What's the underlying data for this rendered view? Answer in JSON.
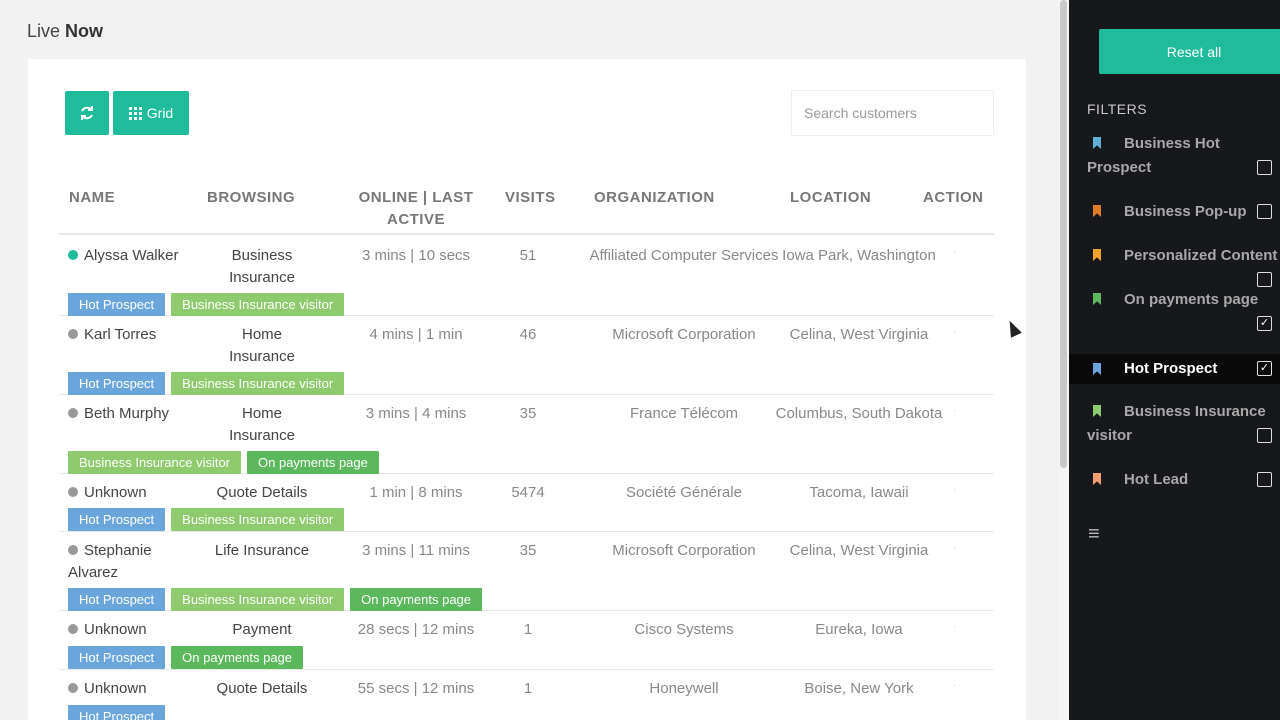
{
  "page": {
    "title_light": "Live",
    "title_bold": "Now"
  },
  "toolbar": {
    "refresh_icon": "refresh-icon",
    "grid_label": "Grid",
    "grid_icon": "grid-icon"
  },
  "search": {
    "placeholder": "Search customers"
  },
  "table": {
    "headers": [
      "NAME",
      "BROWSING",
      "ONLINE | LAST ACTIVE",
      "VISITS",
      "ORGANIZATION",
      "LOCATION",
      "ACTION"
    ],
    "rows": [
      {
        "name": "Alyssa Walker",
        "online": true,
        "browsing": "Business Insurance",
        "activity": "3 mins | 10 secs",
        "visits": "51",
        "organization": "Affiliated Computer Services",
        "location": "Iowa Park, Washington",
        "action": "·",
        "tags": [
          "Hot Prospect",
          "Business Insurance visitor"
        ]
      },
      {
        "name": "Karl Torres",
        "online": false,
        "browsing": "Home Insurance",
        "activity": "4 mins | 1 min",
        "visits": "46",
        "organization": "Microsoft Corporation",
        "location": "Celina, West Virginia",
        "action": "·",
        "tags": [
          "Hot Prospect",
          "Business Insurance visitor"
        ]
      },
      {
        "name": "Beth Murphy",
        "online": false,
        "browsing": "Home Insurance",
        "activity": "3 mins | 4 mins",
        "visits": "35",
        "organization": "France Télécom",
        "location": "Columbus, South Dakota",
        "action": "·",
        "tags": [
          "Business Insurance visitor",
          "On payments page"
        ]
      },
      {
        "name": "Unknown",
        "online": false,
        "browsing": "Quote Details",
        "activity": "1 min | 8 mins",
        "visits": "5474",
        "organization": "Société Générale",
        "location": "Tacoma, Iawaii",
        "action": "·",
        "tags": [
          "Hot Prospect",
          "Business Insurance visitor"
        ]
      },
      {
        "name": "Stephanie Alvarez",
        "online": false,
        "browsing": "Life Insurance",
        "activity": "3 mins | 11 mins",
        "visits": "35",
        "organization": "Microsoft Corporation",
        "location": "Celina, West Virginia",
        "action": "·",
        "tags": [
          "Hot Prospect",
          "Business Insurance visitor",
          "On payments page"
        ]
      },
      {
        "name": "Unknown",
        "online": false,
        "browsing": "Payment",
        "activity": "28 secs | 12 mins",
        "visits": "1",
        "organization": "Cisco Systems",
        "location": "Eureka, Iowa",
        "action": "·",
        "tags": [
          "Hot Prospect",
          "On payments page"
        ]
      },
      {
        "name": "Unknown",
        "online": false,
        "browsing": "Quote Details",
        "activity": "55 secs | 12 mins",
        "visits": "1",
        "organization": "Honeywell",
        "location": "Boise, New York",
        "action": "·",
        "tags": [
          "Hot Prospect"
        ]
      }
    ]
  },
  "sidebar": {
    "reset_label": "Reset all",
    "filters_heading": "FILTERS",
    "filters": [
      {
        "label": "Business Hot Prospect",
        "color": "#5fb0d8",
        "checked": false
      },
      {
        "label": "Business Pop-up",
        "color": "#e07b28",
        "checked": false
      },
      {
        "label": "Personalized Content",
        "color": "#f0a52a",
        "checked": false
      },
      {
        "label": "On payments page",
        "color": "#5cb85c",
        "checked": true
      },
      {
        "label": "Hot Prospect",
        "color": "#6aa6dc",
        "checked": true
      },
      {
        "label": "Business Insurance visitor",
        "color": "#8dcb6e",
        "checked": false
      },
      {
        "label": "Hot Lead",
        "color": "#f0a070",
        "checked": false
      }
    ],
    "menu_icon": "hamburger-icon"
  },
  "colors": {
    "accent": "#1fbc9c",
    "tag_hot": "#6aa6dc",
    "tag_biz": "#8dcb6e",
    "tag_pay": "#5cb85c",
    "sidebar_bg": "#17181c"
  }
}
